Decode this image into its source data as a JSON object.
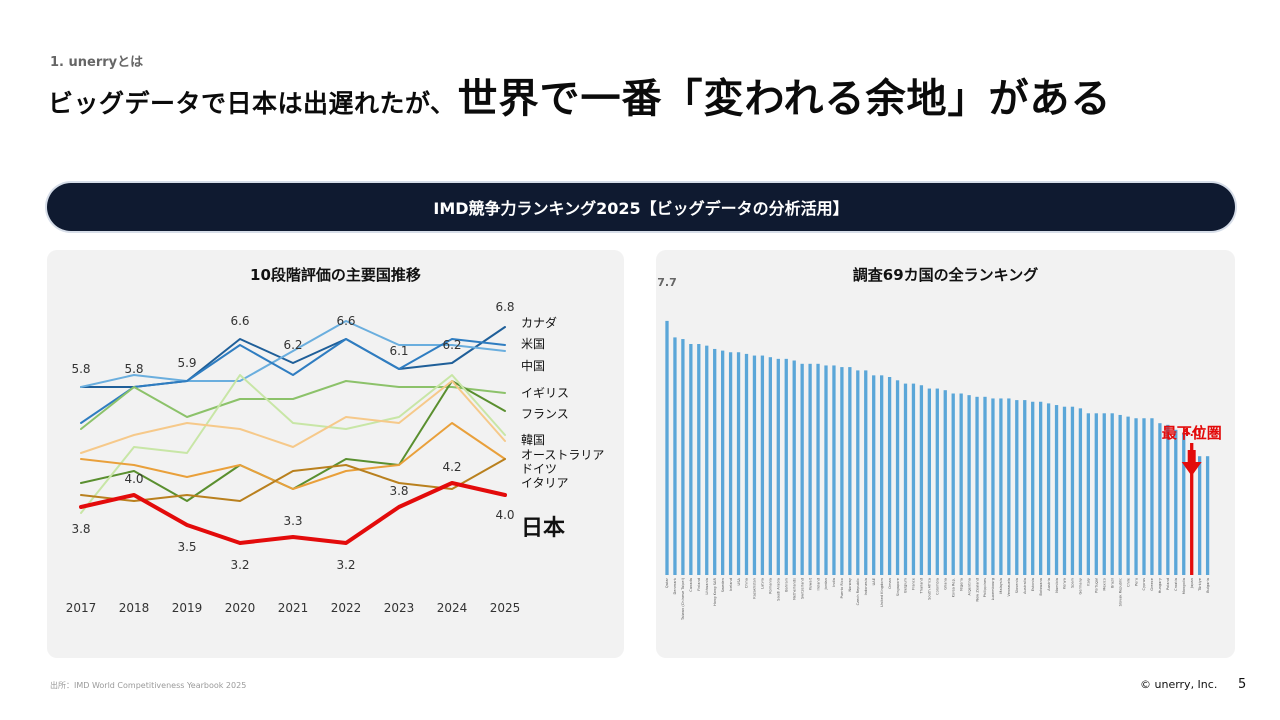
{
  "header": {
    "section": "1. unerryとは",
    "title_part1": "ビッグデータで日本は出遅れたが、",
    "title_part2": "世界で一番「変われる余地」がある"
  },
  "banner": {
    "title": "IMD競争力ランキング2025【ビッグデータの分析活用】"
  },
  "left_panel": {
    "title": "10段階評価の主要国推移"
  },
  "right_panel": {
    "title": "調査69カ国の全ランキング"
  },
  "footer": {
    "source": "出所：IMD World Competitiveness Yearbook 2025",
    "copyright": "© unerry, Inc.",
    "page": "5"
  },
  "colors": {
    "japan": "#e30b0b",
    "bar": "#5aa6d8",
    "japan_bar": "#e30b0b",
    "banner_bg": "#0f1a30",
    "panel_bg": "#f2f2f2"
  },
  "chart_data": [
    {
      "type": "line",
      "title": "10段階評価の主要国推移",
      "x": [
        "2017",
        "2018",
        "2019",
        "2020",
        "2021",
        "2022",
        "2023",
        "2024",
        "2025"
      ],
      "ylim": [
        2.5,
        7.5
      ],
      "grid": false,
      "legend": "right",
      "series": [
        {
          "name": "カナダ",
          "color": "#1f5f99",
          "width": 2,
          "values": [
            5.8,
            5.8,
            5.9,
            6.6,
            6.2,
            6.6,
            6.1,
            6.2,
            6.8
          ]
        },
        {
          "name": "米国",
          "color": "#6aaede",
          "width": 2,
          "values": [
            5.8,
            6.0,
            5.9,
            5.9,
            6.4,
            6.9,
            6.5,
            6.5,
            6.4
          ]
        },
        {
          "name": "中国",
          "color": "#2f7dc1",
          "width": 2,
          "values": [
            5.2,
            5.8,
            5.9,
            6.5,
            6.0,
            6.6,
            6.1,
            6.6,
            6.5
          ]
        },
        {
          "name": "イギリス",
          "color": "#8cc26a",
          "width": 2,
          "values": [
            5.1,
            5.8,
            5.3,
            5.6,
            5.6,
            5.9,
            5.8,
            5.8,
            5.7
          ]
        },
        {
          "name": "フランス",
          "color": "#5a8f2f",
          "width": 2,
          "values": [
            4.2,
            4.4,
            3.9,
            4.5,
            4.1,
            4.6,
            4.5,
            5.9,
            5.4
          ]
        },
        {
          "name": "韓国",
          "color": "#c8e6a6",
          "width": 2,
          "values": [
            3.7,
            4.8,
            4.7,
            6.0,
            5.2,
            5.1,
            5.3,
            6.0,
            5.0
          ]
        },
        {
          "name": "オーストラリア",
          "color": "#f6c98a",
          "width": 2,
          "values": [
            4.7,
            5.0,
            5.2,
            5.1,
            4.8,
            5.3,
            5.2,
            5.9,
            4.9
          ]
        },
        {
          "name": "ドイツ",
          "color": "#e9a03b",
          "width": 2,
          "values": [
            4.6,
            4.5,
            4.3,
            4.5,
            4.1,
            4.4,
            4.5,
            5.2,
            4.6
          ]
        },
        {
          "name": "イタリア",
          "color": "#b9801e",
          "width": 2,
          "values": [
            4.0,
            3.9,
            4.0,
            3.9,
            4.4,
            4.5,
            4.2,
            4.1,
            4.6
          ]
        },
        {
          "name": "日本",
          "color": "#e30b0b",
          "width": 4,
          "values": [
            3.8,
            4.0,
            3.5,
            3.2,
            3.3,
            3.2,
            3.8,
            4.2,
            4.0
          ]
        }
      ],
      "data_labels": [
        {
          "series": "カナダ",
          "x": "2017",
          "text": "5.8"
        },
        {
          "series": "カナダ",
          "x": "2018",
          "text": "5.8"
        },
        {
          "series": "カナダ",
          "x": "2019",
          "text": "5.9"
        },
        {
          "series": "カナダ",
          "x": "2020",
          "text": "6.6"
        },
        {
          "series": "カナダ",
          "x": "2021",
          "text": "6.2"
        },
        {
          "series": "カナダ",
          "x": "2022",
          "text": "6.6"
        },
        {
          "series": "カナダ",
          "x": "2023",
          "text": "6.1"
        },
        {
          "series": "カナダ",
          "x": "2024",
          "text": "6.2"
        },
        {
          "series": "カナダ",
          "x": "2025",
          "text": "6.8"
        },
        {
          "series": "日本",
          "x": "2017",
          "text": "3.8"
        },
        {
          "series": "日本",
          "x": "2018",
          "text": "4.0"
        },
        {
          "series": "日本",
          "x": "2019",
          "text": "3.5"
        },
        {
          "series": "日本",
          "x": "2020",
          "text": "3.2"
        },
        {
          "series": "日本",
          "x": "2021",
          "text": "3.3"
        },
        {
          "series": "日本",
          "x": "2022",
          "text": "3.2"
        },
        {
          "series": "日本",
          "x": "2023",
          "text": "3.8"
        },
        {
          "series": "日本",
          "x": "2024",
          "text": "4.2"
        },
        {
          "series": "日本",
          "x": "2025",
          "text": "4.0"
        }
      ]
    },
    {
      "type": "bar",
      "title": "調査69カ国の全ランキング",
      "ylim": [
        0,
        8
      ],
      "grid": false,
      "categories": [
        "Qatar",
        "Denmark",
        "Taiwan (Chinese Taipei)",
        "Canada",
        "Finland",
        "Lithuania",
        "Hong Kong SAR",
        "Sweden",
        "Iceland",
        "USA",
        "China",
        "Kazakhstan",
        "Latvia",
        "Romania",
        "Saudi Arabia",
        "Bahrain",
        "Netherlands",
        "Switzerland",
        "Kuwait",
        "Ireland",
        "Jordan",
        "India",
        "Puerto Rico",
        "Norway",
        "Czech Republic",
        "Indonesia",
        "UAE",
        "United Kingdom",
        "Oman",
        "Singapore",
        "Belgium",
        "France",
        "Thailand",
        "South Africa",
        "Colombia",
        "Ghana",
        "Korea Rep.",
        "Nigeria",
        "Argentina",
        "New Zealand",
        "Philippines",
        "Luxembourg",
        "Malaysia",
        "Venezuela",
        "Slovenia",
        "Australia",
        "Estonia",
        "Botswana",
        "Austria",
        "Namibia",
        "Kenya",
        "Spain",
        "Germany",
        "Italy",
        "Portugal",
        "Mexico",
        "Brazil",
        "Slovak Republic",
        "Chile",
        "Peru",
        "Cyprus",
        "Greece",
        "Hungary",
        "Poland",
        "Croatia",
        "Mongolia",
        "Japan",
        "Türkiye",
        "Bulgaria"
      ],
      "values": [
        7.7,
        7.2,
        7.15,
        7.0,
        7.0,
        6.95,
        6.85,
        6.8,
        6.75,
        6.75,
        6.7,
        6.65,
        6.65,
        6.6,
        6.55,
        6.55,
        6.5,
        6.4,
        6.4,
        6.4,
        6.35,
        6.35,
        6.3,
        6.3,
        6.2,
        6.2,
        6.05,
        6.05,
        6.0,
        5.9,
        5.8,
        5.8,
        5.75,
        5.65,
        5.65,
        5.6,
        5.5,
        5.5,
        5.45,
        5.4,
        5.4,
        5.35,
        5.35,
        5.35,
        5.3,
        5.3,
        5.25,
        5.25,
        5.2,
        5.15,
        5.1,
        5.1,
        5.05,
        4.9,
        4.9,
        4.9,
        4.9,
        4.85,
        4.8,
        4.75,
        4.75,
        4.75,
        4.6,
        4.55,
        4.4,
        4.3,
        4.0,
        3.6,
        3.6
      ],
      "highlight": {
        "category": "Japan",
        "label": "最下位圏",
        "value_label": "4.0"
      },
      "data_labels": [
        {
          "category": "Qatar",
          "text": "7.7"
        }
      ]
    }
  ]
}
